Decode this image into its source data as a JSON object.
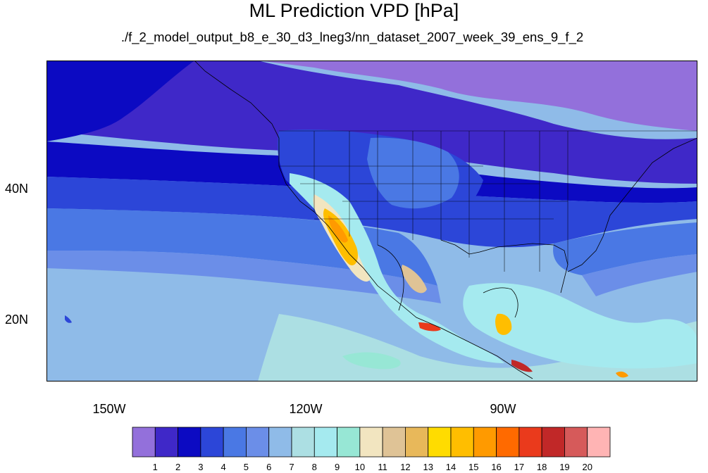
{
  "title": "ML Prediction VPD [hPa]",
  "subtitle": "./f_2_model_output_b8_e_30_d3_lneg3/nn_dataset_2007_week_39_ens_9_f_2",
  "map": {
    "projection": "cylindrical-equidistant",
    "lon_range": [
      -160,
      -61
    ],
    "lat_range": [
      11,
      60
    ],
    "x_tick_labels": [
      "150W",
      "120W",
      "90W"
    ],
    "y_tick_labels": [
      "40N",
      "20N"
    ],
    "field": "VPD",
    "units": "hPa"
  },
  "colorbar": {
    "levels": [
      "1",
      "2",
      "3",
      "4",
      "5",
      "6",
      "7",
      "8",
      "9",
      "10",
      "11",
      "12",
      "13",
      "14",
      "15",
      "16",
      "17",
      "18",
      "19",
      "20"
    ],
    "colors": [
      "#9370db",
      "#3f28c8",
      "#0c0ac2",
      "#2c46d8",
      "#4a78e4",
      "#6b8ee8",
      "#8fbbe8",
      "#acdfe3",
      "#a5eaef",
      "#97e7d5",
      "#f2e5c0",
      "#dfc396",
      "#e8b85a",
      "#ffdc00",
      "#ffbe00",
      "#ff9a00",
      "#ff6a00",
      "#ea3a1c",
      "#c12828",
      "#d65a5a",
      "#ffb4b4"
    ]
  }
}
